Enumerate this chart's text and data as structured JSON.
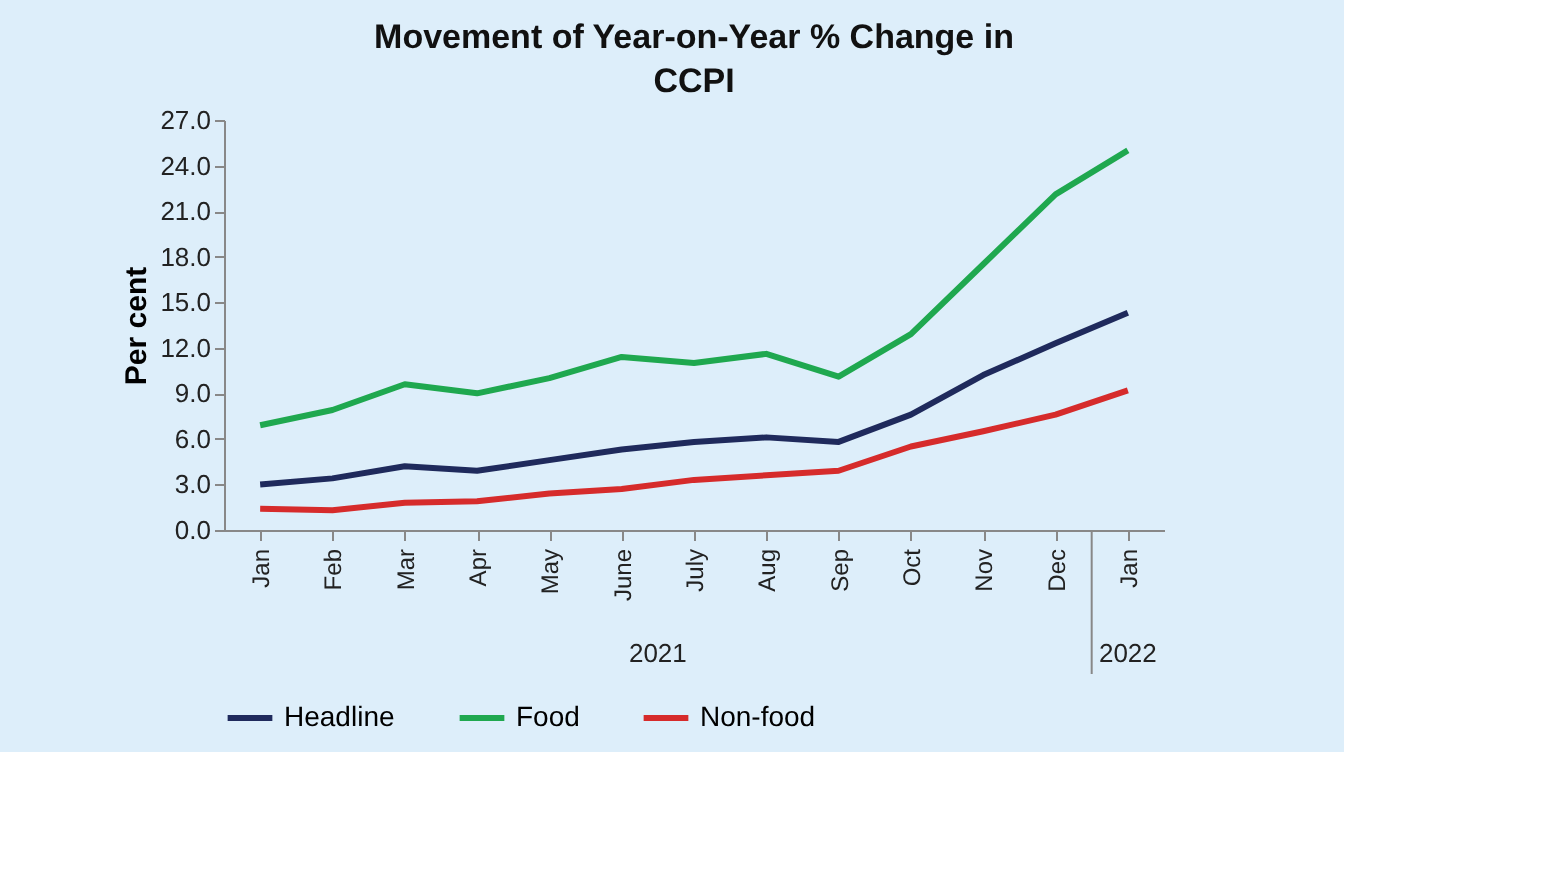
{
  "chart_data": {
    "type": "line",
    "title": "Movement of Year-on-Year % Change in CCPI",
    "ylabel": "Per cent",
    "categories": [
      "Jan",
      "Feb",
      "Mar",
      "Apr",
      "May",
      "June",
      "July",
      "Aug",
      "Sep",
      "Oct",
      "Nov",
      "Dec",
      "Jan"
    ],
    "series": [
      {
        "name": "Headline",
        "color": "#1f2a5c",
        "values": [
          3.0,
          3.4,
          4.2,
          3.9,
          4.6,
          5.3,
          5.8,
          6.1,
          5.8,
          7.6,
          10.2,
          12.3,
          14.3
        ]
      },
      {
        "name": "Food",
        "color": "#1fa84f",
        "values": [
          6.9,
          7.9,
          9.6,
          9.0,
          10.0,
          11.4,
          11.0,
          11.6,
          10.1,
          12.9,
          17.5,
          22.1,
          25.0
        ]
      },
      {
        "name": "Non-food",
        "color": "#d62b2b",
        "values": [
          1.4,
          1.3,
          1.8,
          1.9,
          2.4,
          2.7,
          3.3,
          3.6,
          3.9,
          5.5,
          6.5,
          7.6,
          9.2
        ]
      }
    ],
    "annotations": [
      "2021",
      "2022"
    ],
    "ylim": [
      0,
      27
    ],
    "yticks": [
      {
        "value": 0,
        "label": "0.0"
      },
      {
        "value": 3,
        "label": "3.0"
      },
      {
        "value": 6,
        "label": "6.0"
      },
      {
        "value": 9,
        "label": "9.0"
      },
      {
        "value": 12,
        "label": "12.0"
      },
      {
        "value": 15,
        "label": "15.0"
      },
      {
        "value": 18,
        "label": "18.0"
      },
      {
        "value": 21,
        "label": "21.0"
      },
      {
        "value": 24,
        "label": "24.0"
      },
      {
        "value": 27,
        "label": "27.0"
      }
    ],
    "grid": false,
    "legend": "bottom",
    "marker": "none",
    "line_style": "solid"
  }
}
